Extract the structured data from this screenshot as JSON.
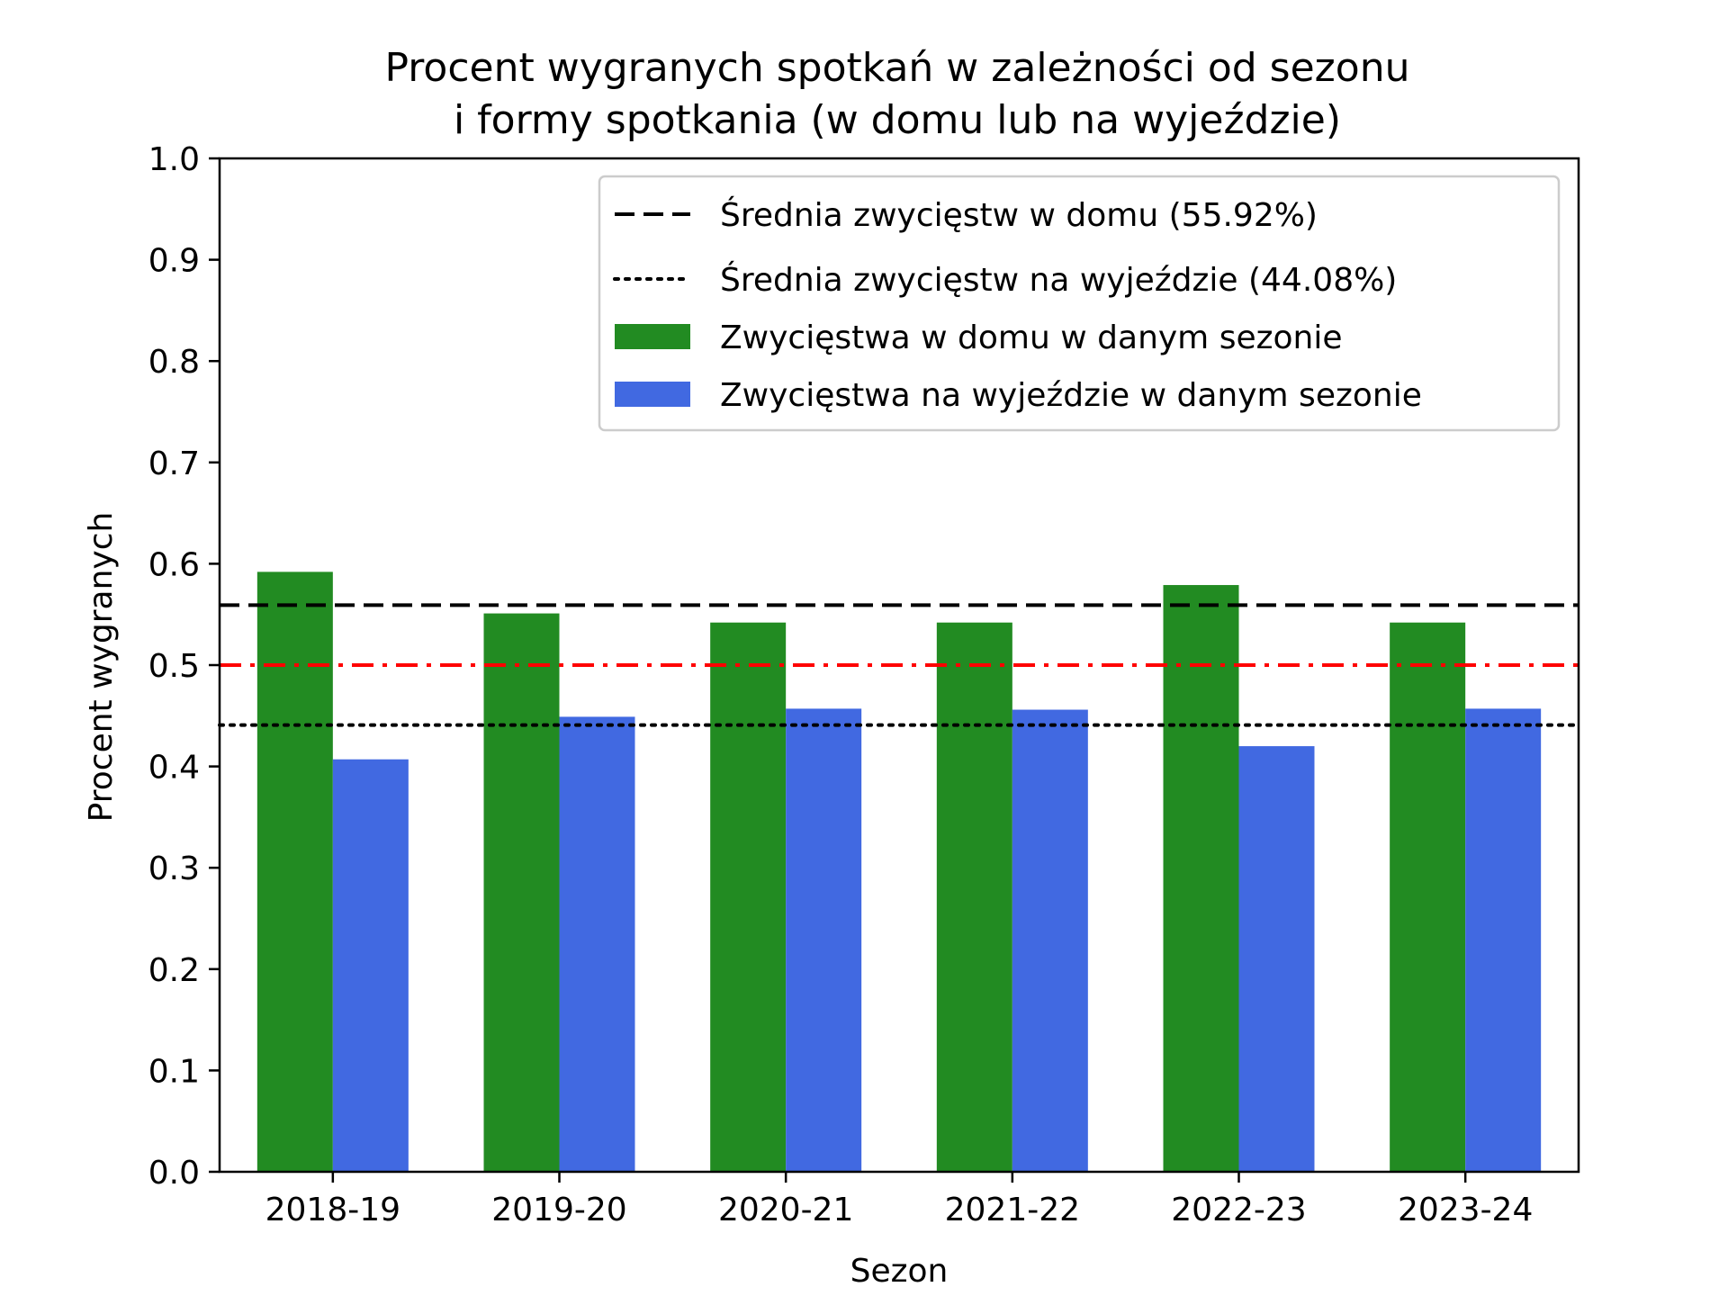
{
  "chart_data": {
    "type": "bar",
    "title_lines": [
      "Procent wygranych spotkań w zależności od sezonu",
      "i formy spotkania (w domu lub na wyjeździe)"
    ],
    "xlabel": "Sezon",
    "ylabel": "Procent wygranych",
    "categories": [
      "2018-19",
      "2019-20",
      "2020-21",
      "2021-22",
      "2022-23",
      "2023-24"
    ],
    "ylim": [
      0,
      1.0
    ],
    "yticks": [
      0.0,
      0.1,
      0.2,
      0.3,
      0.4,
      0.5,
      0.6,
      0.7,
      0.8,
      0.9,
      1.0
    ],
    "ytick_labels": [
      "0.0",
      "0.1",
      "0.2",
      "0.3",
      "0.4",
      "0.5",
      "0.6",
      "0.7",
      "0.8",
      "0.9",
      "1.0"
    ],
    "grid": false,
    "legend_position": "top-right",
    "series": [
      {
        "name": "Zwycięstwa w domu w danym sezonie",
        "color": "#228b22",
        "values": [
          0.592,
          0.551,
          0.542,
          0.542,
          0.579,
          0.542
        ]
      },
      {
        "name": "Zwycięstwa na wyjeździe w danym sezonie",
        "color": "#4169e1",
        "values": [
          0.407,
          0.449,
          0.457,
          0.456,
          0.42,
          0.457
        ]
      }
    ],
    "reference_lines": [
      {
        "name": "Średnia zwycięstw w domu (55.92%)",
        "value": 0.5592,
        "style": "dashed",
        "color": "#000000",
        "in_legend": true
      },
      {
        "name": "Średnia zwycięstw na wyjeździe (44.08%)",
        "value": 0.4408,
        "style": "dotted",
        "color": "#000000",
        "in_legend": true
      },
      {
        "name": "",
        "value": 0.5,
        "style": "dashdot",
        "color": "#ff0000",
        "in_legend": false
      }
    ]
  }
}
